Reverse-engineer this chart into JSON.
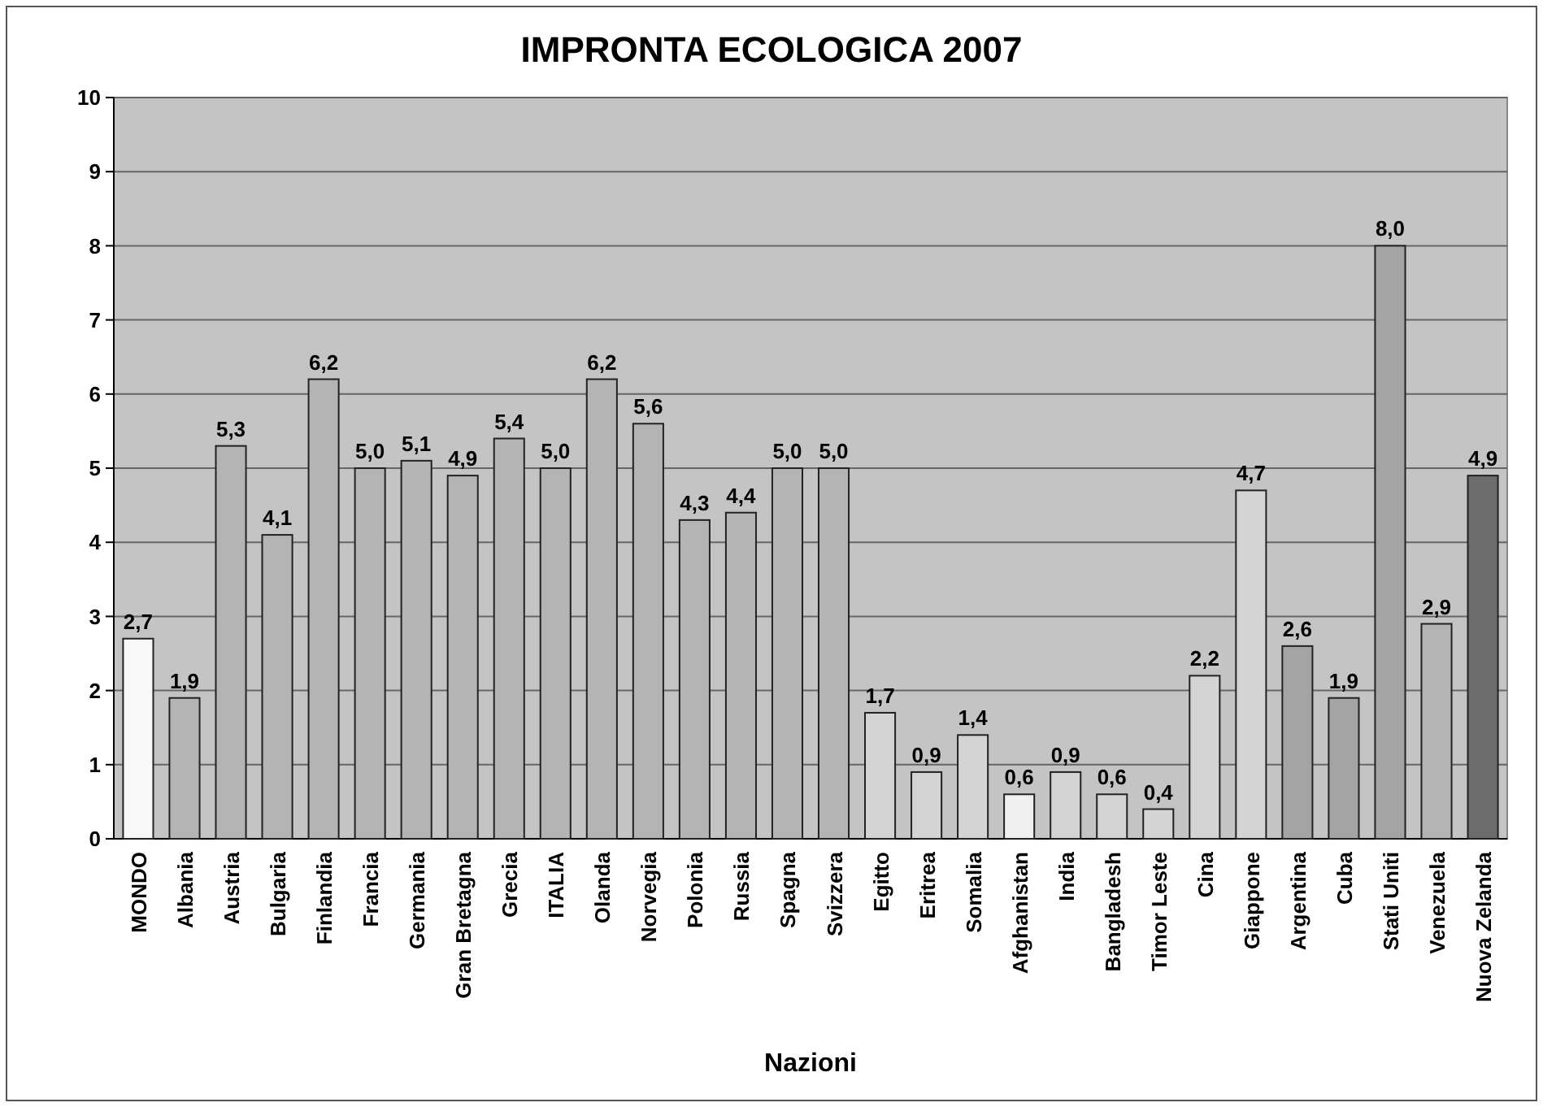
{
  "chart_data": {
    "type": "bar",
    "title": "IMPRONTA ECOLOGICA 2007",
    "xlabel": "Nazioni",
    "categories": [
      "MONDO",
      "Albania",
      "Austria",
      "Bulgaria",
      "Finlandia",
      "Francia",
      "Germania",
      "Gran Bretagna",
      "Grecia",
      "ITALIA",
      "Olanda",
      "Norvegia",
      "Polonia",
      "Russia",
      "Spagna",
      "Svizzera",
      "Egitto",
      "Eritrea",
      "Somalia",
      "Afghanistan",
      "India",
      "Bangladesh",
      "Timor Leste",
      "Cina",
      "Giappone",
      "Argentina",
      "Cuba",
      "Stati Uniti",
      "Venezuela",
      "Nuova Zelanda"
    ],
    "values": [
      2.7,
      1.9,
      5.3,
      4.1,
      6.2,
      5.0,
      5.1,
      4.9,
      5.4,
      5.0,
      6.2,
      5.6,
      4.3,
      4.4,
      5.0,
      5.0,
      1.7,
      0.9,
      1.4,
      0.6,
      0.9,
      0.6,
      0.4,
      2.2,
      4.7,
      2.6,
      1.9,
      8.0,
      2.9,
      4.9
    ],
    "value_labels": [
      "2,7",
      "1,9",
      "5,3",
      "4,1",
      "6,2",
      "5,0",
      "5,1",
      "4,9",
      "5,4",
      "5,0",
      "6,2",
      "5,6",
      "4,3",
      "4,4",
      "5,0",
      "5,0",
      "1,7",
      "0,9",
      "1,4",
      "0,6",
      "0,9",
      "0,6",
      "0,4",
      "2,2",
      "4,7",
      "2,6",
      "1,9",
      "8,0",
      "2,9",
      "4,9"
    ],
    "colors": [
      "#f8f8f8",
      "#b4b4b4",
      "#b4b4b4",
      "#b4b4b4",
      "#b4b4b4",
      "#b4b4b4",
      "#b4b4b4",
      "#b4b4b4",
      "#b4b4b4",
      "#b4b4b4",
      "#b4b4b4",
      "#b4b4b4",
      "#b4b4b4",
      "#b4b4b4",
      "#b4b4b4",
      "#b4b4b4",
      "#d4d4d4",
      "#d4d4d4",
      "#d4d4d4",
      "#f0f0f0",
      "#d4d4d4",
      "#d4d4d4",
      "#d4d4d4",
      "#d4d4d4",
      "#d4d4d4",
      "#a4a4a4",
      "#a4a4a4",
      "#a4a4a4",
      "#b4b4b4",
      "#6c6c6c"
    ],
    "ylim": [
      0,
      10
    ],
    "yticks": [
      0,
      1,
      2,
      3,
      4,
      5,
      6,
      7,
      8,
      9,
      10
    ],
    "grid": "y"
  }
}
